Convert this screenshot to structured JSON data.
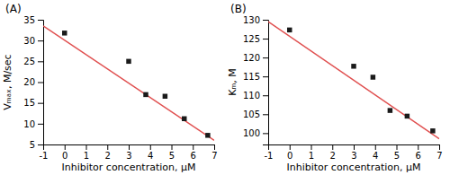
{
  "chart_data": [
    {
      "type": "scatter",
      "title": "(A)",
      "xlabel": "Inhibitor concentration, μM",
      "ylabel": "Vₘₐₓ, M/sec",
      "series": [
        {
          "type": "scatter",
          "x": [
            0.0,
            3.0,
            3.8,
            4.7,
            5.6,
            6.7
          ],
          "values": [
            31.8,
            25.0,
            17.0,
            16.6,
            11.2,
            7.2
          ],
          "color": "#1a1a1a",
          "marker": "square"
        },
        {
          "type": "line",
          "x": [
            -1,
            7
          ],
          "values": [
            33.5,
            6.0
          ],
          "color": "#e05050",
          "line_style": "solid"
        }
      ],
      "xlim": [
        -1,
        7
      ],
      "ylim": [
        5,
        35
      ],
      "xticks": [
        -1,
        0,
        1,
        2,
        3,
        4,
        5,
        6,
        7
      ],
      "yticks": [
        5,
        10,
        15,
        20,
        25,
        30,
        35
      ]
    },
    {
      "type": "scatter",
      "title": "(B)",
      "xlabel": "Inhibitor concentration, μM",
      "ylabel": "Kₘ, M",
      "series": [
        {
          "type": "scatter",
          "x": [
            0.0,
            3.0,
            3.9,
            4.7,
            5.5,
            6.7
          ],
          "values": [
            127.3,
            117.7,
            114.8,
            106.0,
            104.5,
            100.6
          ],
          "color": "#1a1a1a",
          "marker": "square"
        },
        {
          "type": "line",
          "x": [
            -1,
            7
          ],
          "values": [
            129.5,
            98.5
          ],
          "color": "#e05050",
          "line_style": "solid"
        }
      ],
      "xlim": [
        -1,
        7
      ],
      "ylim": [
        97,
        130
      ],
      "xticks": [
        -1,
        0,
        1,
        2,
        3,
        4,
        5,
        6,
        7
      ],
      "yticks": [
        100,
        105,
        110,
        115,
        120,
        125,
        130
      ]
    }
  ]
}
